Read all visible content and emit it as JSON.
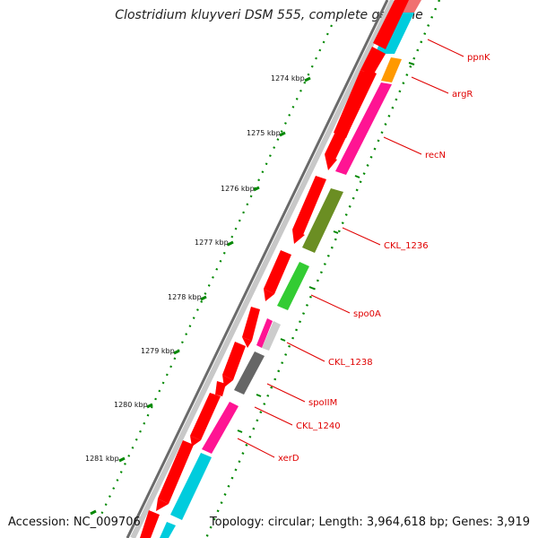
{
  "header": {
    "title": "Clostridium kluyveri DSM 555, complete genome"
  },
  "footer": {
    "accession": "Accession: NC_009706",
    "summary": "Topology: circular; Length: 3,964,618 bp; Genes: 3,919"
  },
  "ticks": [
    "1274 kbp",
    "1275 kbp",
    "1276 kbp",
    "1277 kbp",
    "1278 kbp",
    "1279 kbp",
    "1280 kbp",
    "1281 kbp"
  ],
  "genes": [
    {
      "name": "ppnK",
      "color": "#f07070"
    },
    {
      "name": "argR",
      "color": "#ff9900"
    },
    {
      "name": "recN",
      "color": "#ff1493"
    },
    {
      "name": "CKL_1236",
      "color": "#6b8e23"
    },
    {
      "name": "spo0A",
      "color": "#33cc33"
    },
    {
      "name": "CKL_1238",
      "color": "#d0d0d0"
    },
    {
      "name": "spoIIM",
      "color": "#666666"
    },
    {
      "name": "CKL_1240",
      "color": "#ff1493"
    },
    {
      "name": "xerD",
      "color": "#ff1493"
    }
  ],
  "colors": {
    "cds": "#ff0000",
    "trna_cyan": "#00ccdd",
    "gc_skew_dots": "#008800",
    "backbone": "#888888"
  }
}
